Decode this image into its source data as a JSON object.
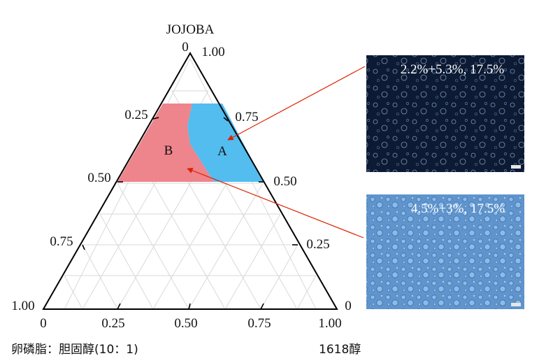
{
  "diagram": {
    "type": "ternary-phase-diagram",
    "apex_label": "JOJOBA",
    "left_component_label": "卵磷脂：胆固醇(10：1)",
    "right_component_label": "1618醇",
    "left_edge_ticks": [
      {
        "value": 0,
        "label": "0"
      },
      {
        "value": 0.25,
        "label": "0.25"
      },
      {
        "value": 0.5,
        "label": "0.50"
      },
      {
        "value": 0.75,
        "label": "0.75"
      },
      {
        "value": 1,
        "label": "1.00"
      }
    ],
    "right_edge_ticks": [
      {
        "value": 1,
        "label": "1.00"
      },
      {
        "value": 0.75,
        "label": "0.75"
      },
      {
        "value": 0.5,
        "label": "0.50"
      },
      {
        "value": 0.25,
        "label": "0.25"
      },
      {
        "value": 0,
        "label": "0"
      }
    ],
    "bottom_ticks": [
      {
        "value": 0,
        "label": "0"
      },
      {
        "value": 0.25,
        "label": "0.25"
      },
      {
        "value": 0.5,
        "label": "0.50"
      },
      {
        "value": 0.75,
        "label": "0.75"
      },
      {
        "value": 1,
        "label": "1.00"
      }
    ],
    "regions": [
      {
        "name": "B",
        "label": "B",
        "color": "#ee848c"
      },
      {
        "name": "A",
        "label": "A",
        "color": "#52bdee"
      }
    ],
    "grid_color": "#d9d9d9",
    "arrow_color": "#dd2200"
  },
  "micrographs": [
    {
      "caption": "2.2%+5.3%, 17.5%",
      "points_to_region": "A",
      "background": "#0d1a33"
    },
    {
      "caption": "4.5%+3%, 17.5%",
      "points_to_region": "B",
      "background": "#5f94cc"
    }
  ]
}
